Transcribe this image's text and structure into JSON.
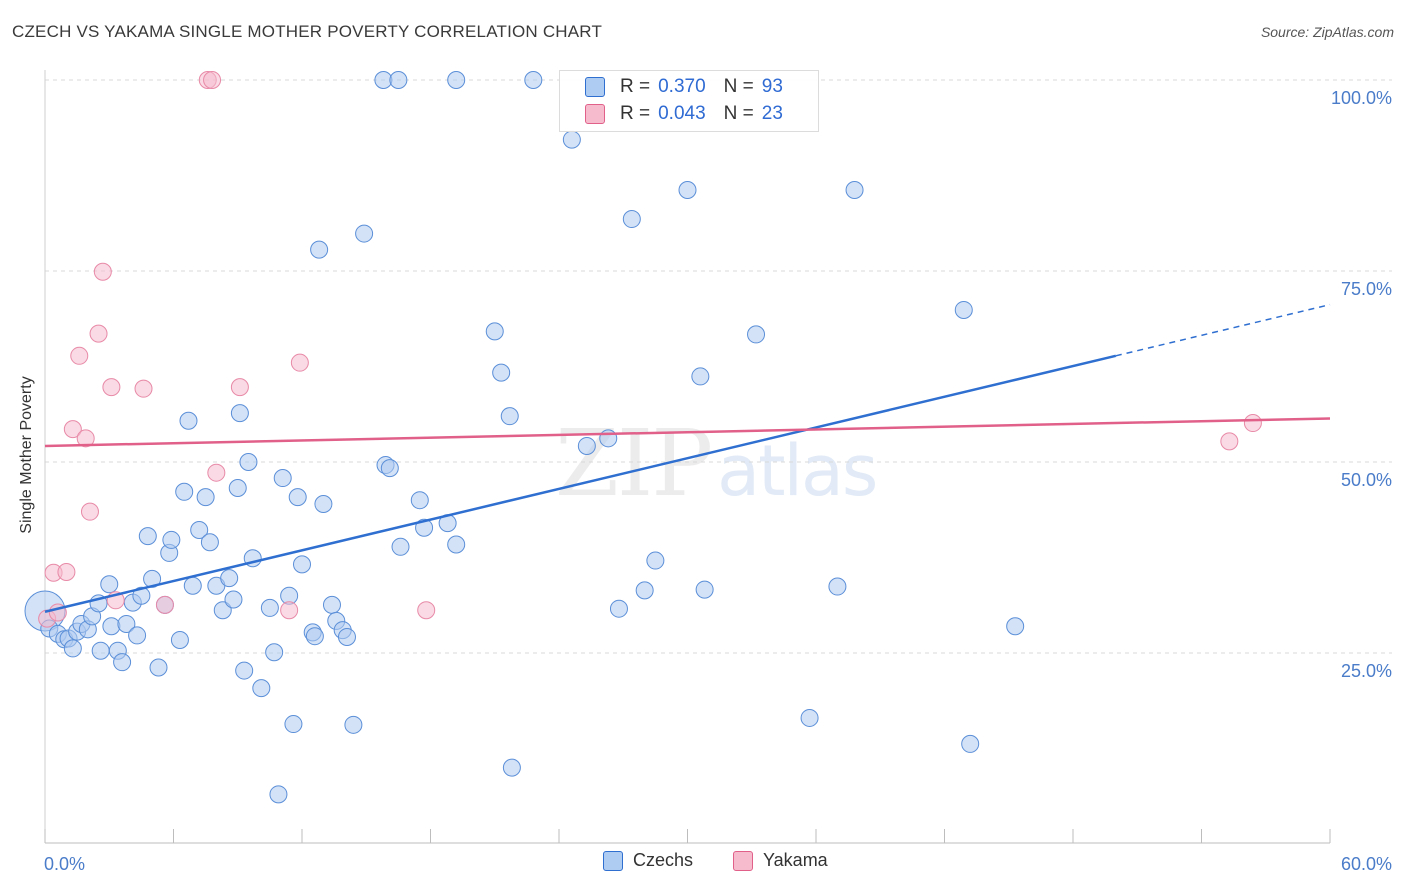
{
  "title": "CZECH VS YAKAMA SINGLE MOTHER POVERTY CORRELATION CHART",
  "source": "Source: ZipAtlas.com",
  "watermark": {
    "zip": "ZIP",
    "atlas": "atlas"
  },
  "colors": {
    "czechs": "#2f6fd0",
    "czechs_fill": "#aecbf1",
    "yakama": "#e0608a",
    "yakama_fill": "#f6bccd",
    "tick": "#4a7cc9"
  },
  "stats": [
    {
      "r_label": "R =",
      "r": "0.370",
      "n_label": "N =",
      "n": "93"
    },
    {
      "r_label": "R =",
      "r": "0.043",
      "n_label": "N =",
      "n": "23"
    }
  ],
  "chart_data": {
    "type": "scatter",
    "title": "CZECH VS YAKAMA SINGLE MOTHER POVERTY CORRELATION CHART",
    "xlabel": "",
    "ylabel": "Single Mother Poverty",
    "xlim": [
      0,
      60
    ],
    "ylim": [
      0,
      105
    ],
    "x_tick_labels": [
      "0.0%",
      "60.0%"
    ],
    "y_ticks": [
      25,
      50,
      75,
      100
    ],
    "y_tick_labels": [
      "25.0%",
      "50.0%",
      "75.0%",
      "100.0%"
    ],
    "grid": true,
    "legend": [
      "Czechs",
      "Yakama"
    ],
    "series": [
      {
        "name": "Czechs",
        "r": 0.37,
        "n": 93,
        "trend": {
          "x0": 0,
          "y0": 30.4,
          "x1": 50,
          "y1": 63.9,
          "dash_to_x": 60,
          "dash_to_y": 70.6
        },
        "points": [
          [
            0.0,
            30.5
          ],
          [
            0.2,
            28.2
          ],
          [
            0.6,
            27.5
          ],
          [
            0.9,
            26.8
          ],
          [
            1.1,
            26.9
          ],
          [
            1.3,
            25.6
          ],
          [
            1.5,
            27.8
          ],
          [
            1.7,
            28.8
          ],
          [
            2.0,
            28.1
          ],
          [
            2.2,
            29.8
          ],
          [
            2.5,
            31.5
          ],
          [
            2.6,
            25.3
          ],
          [
            3.0,
            34.0
          ],
          [
            3.1,
            28.5
          ],
          [
            3.4,
            25.3
          ],
          [
            3.6,
            23.8
          ],
          [
            3.8,
            28.8
          ],
          [
            4.1,
            31.6
          ],
          [
            4.3,
            27.3
          ],
          [
            4.5,
            32.5
          ],
          [
            4.8,
            40.3
          ],
          [
            5.0,
            34.7
          ],
          [
            5.3,
            23.1
          ],
          [
            5.6,
            31.3
          ],
          [
            5.8,
            38.1
          ],
          [
            5.9,
            39.8
          ],
          [
            6.3,
            26.7
          ],
          [
            6.5,
            46.1
          ],
          [
            6.7,
            55.4
          ],
          [
            6.9,
            33.8
          ],
          [
            7.2,
            41.1
          ],
          [
            7.5,
            45.4
          ],
          [
            7.7,
            39.5
          ],
          [
            8.0,
            33.8
          ],
          [
            8.3,
            30.6
          ],
          [
            8.6,
            34.8
          ],
          [
            8.8,
            32.0
          ],
          [
            9.0,
            46.6
          ],
          [
            9.1,
            56.4
          ],
          [
            9.3,
            22.7
          ],
          [
            9.5,
            50.0
          ],
          [
            9.7,
            37.4
          ],
          [
            10.1,
            20.4
          ],
          [
            10.5,
            30.9
          ],
          [
            10.7,
            25.1
          ],
          [
            10.9,
            6.5
          ],
          [
            11.1,
            47.9
          ],
          [
            11.4,
            32.5
          ],
          [
            11.6,
            15.7
          ],
          [
            11.8,
            45.4
          ],
          [
            12.0,
            36.6
          ],
          [
            12.5,
            27.7
          ],
          [
            12.6,
            27.2
          ],
          [
            12.8,
            77.8
          ],
          [
            13.0,
            44.5
          ],
          [
            13.4,
            31.3
          ],
          [
            13.6,
            29.2
          ],
          [
            13.9,
            28.0
          ],
          [
            14.1,
            27.1
          ],
          [
            14.4,
            15.6
          ],
          [
            14.9,
            79.9
          ],
          [
            15.8,
            100.0
          ],
          [
            15.9,
            49.6
          ],
          [
            16.1,
            49.2
          ],
          [
            16.5,
            100.0
          ],
          [
            16.6,
            38.9
          ],
          [
            17.5,
            45.0
          ],
          [
            17.7,
            41.4
          ],
          [
            18.8,
            42.0
          ],
          [
            19.2,
            39.2
          ],
          [
            19.2,
            100.0
          ],
          [
            21.0,
            67.1
          ],
          [
            21.3,
            61.7
          ],
          [
            21.7,
            56.0
          ],
          [
            21.8,
            10.0
          ],
          [
            22.8,
            100.0
          ],
          [
            24.6,
            92.2
          ],
          [
            25.3,
            52.1
          ],
          [
            26.3,
            53.1
          ],
          [
            26.8,
            30.8
          ],
          [
            27.4,
            81.8
          ],
          [
            28.0,
            33.2
          ],
          [
            28.5,
            37.1
          ],
          [
            30.0,
            85.6
          ],
          [
            30.6,
            61.2
          ],
          [
            30.8,
            33.3
          ],
          [
            33.2,
            66.7
          ],
          [
            35.7,
            16.5
          ],
          [
            37.0,
            33.7
          ],
          [
            37.8,
            85.6
          ],
          [
            42.9,
            69.9
          ],
          [
            43.2,
            13.1
          ],
          [
            45.3,
            28.5
          ]
        ]
      },
      {
        "name": "Yakama",
        "r": 0.043,
        "n": 23,
        "trend": {
          "x0": 0,
          "y0": 52.1,
          "x1": 60,
          "y1": 55.7
        },
        "points": [
          [
            0.1,
            29.5
          ],
          [
            0.4,
            35.5
          ],
          [
            0.6,
            30.3
          ],
          [
            1.0,
            35.6
          ],
          [
            1.3,
            54.3
          ],
          [
            1.6,
            63.9
          ],
          [
            1.9,
            53.1
          ],
          [
            2.1,
            43.5
          ],
          [
            2.5,
            66.8
          ],
          [
            2.7,
            74.9
          ],
          [
            3.1,
            59.8
          ],
          [
            3.3,
            31.9
          ],
          [
            4.6,
            59.6
          ],
          [
            5.6,
            31.3
          ],
          [
            7.6,
            100.0
          ],
          [
            7.8,
            100.0
          ],
          [
            8.0,
            48.6
          ],
          [
            9.1,
            59.8
          ],
          [
            11.4,
            30.6
          ],
          [
            11.9,
            63.0
          ],
          [
            17.8,
            30.6
          ],
          [
            55.3,
            52.7
          ],
          [
            56.4,
            55.1
          ]
        ]
      }
    ]
  },
  "legend_bottom": [
    {
      "label": "Czechs"
    },
    {
      "label": "Yakama"
    }
  ]
}
